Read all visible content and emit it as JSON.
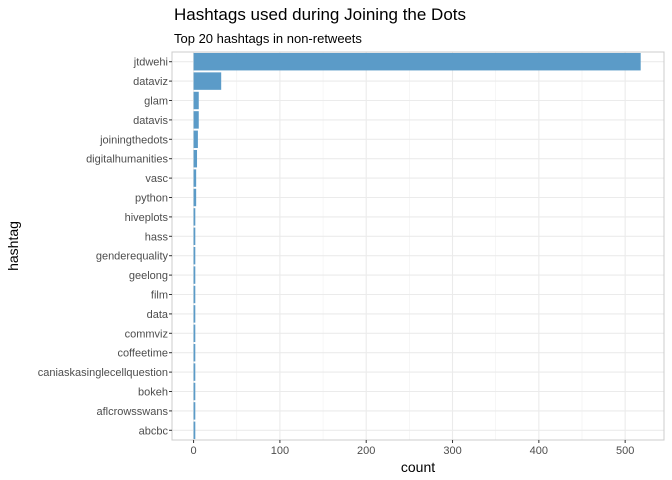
{
  "chart_data": {
    "type": "bar",
    "orientation": "horizontal",
    "title": "Hashtags used during Joining the Dots",
    "subtitle": "Top 20 hashtags in non-retweets",
    "xlabel": "count",
    "ylabel": "hashtag",
    "xlim": [
      -25,
      545
    ],
    "xticks": [
      0,
      100,
      200,
      300,
      400,
      500
    ],
    "grid": true,
    "bar_color": "#5b9bc8",
    "categories": [
      "jtdwehi",
      "dataviz",
      "glam",
      "datavis",
      "joiningthedots",
      "digitalhumanities",
      "vasc",
      "python",
      "hiveplots",
      "hass",
      "genderequality",
      "geelong",
      "film",
      "data",
      "commviz",
      "coffeetime",
      "caniaskasinglecellquestion",
      "bokeh",
      "aflcrowsswans",
      "abcbc"
    ],
    "values": [
      518,
      32,
      6,
      6,
      5,
      4,
      3,
      3,
      2,
      2,
      2,
      2,
      2,
      2,
      2,
      2,
      2,
      2,
      2,
      2
    ]
  }
}
